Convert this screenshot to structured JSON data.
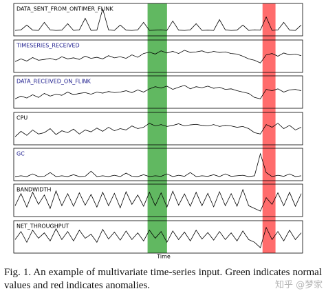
{
  "chart_data": [
    {
      "type": "line",
      "title": "DATA_SENT_FROM_ONTIMER_FLINK",
      "title_color": "#000000",
      "color": "#000000",
      "xlim": [
        0,
        49
      ],
      "ylim": [
        0,
        100
      ],
      "values": [
        10,
        12,
        30,
        11,
        10,
        40,
        12,
        10,
        11,
        35,
        10,
        12,
        55,
        10,
        11,
        90,
        12,
        10,
        30,
        11,
        10,
        12,
        40,
        10,
        11,
        12,
        10,
        45,
        11,
        10,
        12,
        35,
        10,
        11,
        10,
        50,
        12,
        10,
        11,
        30,
        10,
        12,
        11,
        60,
        10,
        12,
        40,
        11,
        10,
        30
      ]
    },
    {
      "type": "line",
      "title": "TIMESERIES_RECEIVED",
      "title_color": "#1a1a8c",
      "color": "#000000",
      "xlim": [
        0,
        49
      ],
      "ylim": [
        0,
        100
      ],
      "values": [
        30,
        40,
        32,
        45,
        35,
        38,
        42,
        36,
        48,
        40,
        44,
        38,
        50,
        42,
        46,
        40,
        52,
        44,
        48,
        42,
        55,
        46,
        60,
        65,
        58,
        70,
        62,
        68,
        60,
        72,
        64,
        66,
        70,
        62,
        68,
        64,
        66,
        60,
        58,
        50,
        40,
        35,
        25,
        55,
        60,
        50,
        62,
        55,
        58,
        52
      ]
    },
    {
      "type": "line",
      "title": "DATA_RECEIVED_ON_FLINK",
      "title_color": "#1a1a8c",
      "color": "#000000",
      "xlim": [
        0,
        49
      ],
      "ylim": [
        0,
        100
      ],
      "values": [
        25,
        35,
        28,
        40,
        30,
        45,
        35,
        42,
        38,
        50,
        40,
        45,
        48,
        42,
        50,
        46,
        52,
        48,
        50,
        55,
        48,
        58,
        50,
        62,
        70,
        65,
        72,
        60,
        68,
        75,
        62,
        70,
        66,
        72,
        64,
        68,
        60,
        62,
        55,
        50,
        45,
        30,
        25,
        60,
        55,
        62,
        50,
        58,
        60,
        55
      ]
    },
    {
      "type": "line",
      "title": "CPU",
      "title_color": "#000000",
      "color": "#000000",
      "xlim": [
        0,
        49
      ],
      "ylim": [
        0,
        100
      ],
      "values": [
        20,
        40,
        25,
        45,
        30,
        35,
        50,
        28,
        42,
        35,
        48,
        30,
        45,
        38,
        52,
        40,
        55,
        42,
        50,
        45,
        60,
        50,
        55,
        70,
        60,
        65,
        58,
        62,
        68,
        60,
        64,
        66,
        62,
        60,
        65,
        58,
        62,
        60,
        55,
        58,
        50,
        35,
        30,
        65,
        55,
        70,
        50,
        62,
        45,
        55
      ]
    },
    {
      "type": "line",
      "title": "GC",
      "title_color": "#1a1a8c",
      "color": "#000000",
      "xlim": [
        0,
        49
      ],
      "ylim": [
        0,
        100
      ],
      "values": [
        5,
        8,
        5,
        15,
        5,
        6,
        20,
        5,
        8,
        5,
        12,
        5,
        6,
        25,
        5,
        8,
        5,
        10,
        5,
        18,
        6,
        5,
        12,
        5,
        8,
        6,
        15,
        5,
        10,
        6,
        20,
        5,
        8,
        6,
        12,
        5,
        15,
        6,
        8,
        10,
        5,
        8,
        90,
        20,
        5,
        10,
        6,
        15,
        5,
        8
      ]
    },
    {
      "type": "line",
      "title": "BANDWIDTH",
      "title_color": "#000000",
      "color": "#000000",
      "xlim": [
        0,
        49
      ],
      "ylim": [
        0,
        100
      ],
      "values": [
        30,
        75,
        25,
        80,
        35,
        70,
        20,
        85,
        30,
        75,
        28,
        78,
        32,
        72,
        25,
        80,
        30,
        76,
        22,
        82,
        35,
        70,
        28,
        80,
        30,
        78,
        25,
        84,
        32,
        74,
        28,
        80,
        30,
        76,
        26,
        82,
        30,
        75,
        28,
        90,
        30,
        20,
        10,
        60,
        35,
        78,
        30,
        80,
        28,
        75
      ]
    },
    {
      "type": "line",
      "title": "NET_THROUGHPUT",
      "title_color": "#000000",
      "color": "#000000",
      "xlim": [
        0,
        49
      ],
      "ylim": [
        0,
        100
      ],
      "values": [
        40,
        70,
        30,
        75,
        45,
        65,
        35,
        80,
        40,
        70,
        35,
        75,
        45,
        60,
        30,
        78,
        42,
        68,
        38,
        72,
        40,
        65,
        35,
        75,
        45,
        70,
        30,
        72,
        40,
        68,
        35,
        75,
        42,
        66,
        38,
        70,
        40,
        65,
        35,
        72,
        40,
        30,
        10,
        85,
        40,
        70,
        35,
        75,
        40,
        65
      ]
    }
  ],
  "highlights": [
    {
      "color": "#2ca02c",
      "range": [
        22.7,
        26
      ]
    },
    {
      "color": "#ff3b3b",
      "range": [
        42.2,
        44.4
      ]
    }
  ],
  "xlabel": "Time",
  "caption": "Fig. 1.  An example of multivariate time-series input. Green indicates normal values and red indicates anomalies.",
  "watermark": "知乎 @梦家"
}
